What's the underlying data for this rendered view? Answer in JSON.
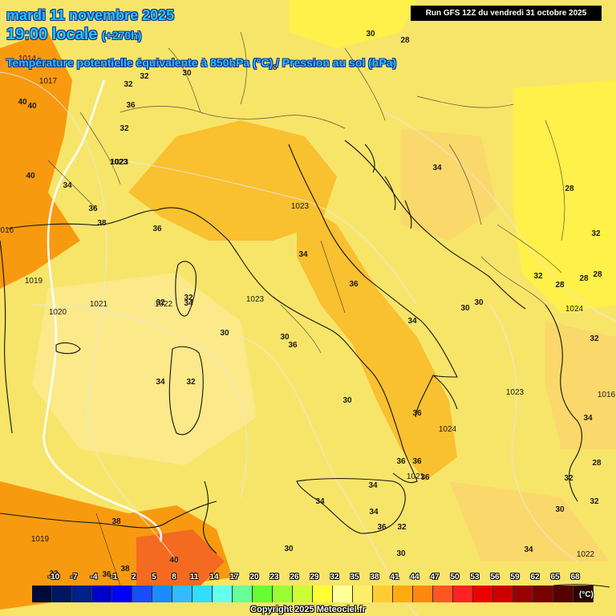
{
  "header": {
    "date_line": "mardi 11 novembre 2025",
    "time_line": "19:00 locale",
    "offset": "(+270h)",
    "parameter": "Température potentielle équivalente à 850hPa (°C) / Pression au sol (hPa)"
  },
  "run_info": "Run GFS 12Z du vendredi 31 octobre 2025",
  "colors": {
    "background_fill": "#f7e56a",
    "band_28_30": "#fff04a",
    "band_32_34": "#fbd86b",
    "band_34_38": "#f9c030",
    "band_38_44": "#f79a10",
    "isobar": "#e8e8e8",
    "pressure_line_1016": "#ffffff",
    "title_text": "#1ec8ff"
  },
  "temperature_labels": [
    "30",
    "28",
    "28",
    "32",
    "32",
    "30",
    "36",
    "32",
    "34",
    "36",
    "40",
    "38",
    "40",
    "40",
    "36",
    "34",
    "1023",
    "32",
    "32",
    "34",
    "36",
    "34",
    "34",
    "30",
    "30",
    "36",
    "32",
    "34",
    "30",
    "36",
    "36",
    "38",
    "40",
    "38",
    "36",
    "34",
    "34",
    "30",
    "32",
    "34",
    "32",
    "30",
    "28",
    "28",
    "28",
    "28",
    "28",
    "32",
    "32",
    "30",
    "30",
    "32",
    "34",
    "32",
    "36",
    "36",
    "36",
    "34",
    "32",
    "30"
  ],
  "pressure_labels": [
    "1017",
    "1014",
    "1023",
    "1019",
    "1021",
    "1020",
    "1022",
    "1023",
    "1023",
    "1024",
    "1024",
    "1023",
    "1021",
    "1019",
    "1022",
    "1016",
    "1016"
  ],
  "legend": {
    "ticks": [
      "-10",
      "-7",
      "-4",
      "-1",
      "2",
      "5",
      "8",
      "11",
      "14",
      "17",
      "20",
      "23",
      "26",
      "29",
      "32",
      "35",
      "38",
      "41",
      "44",
      "47",
      "50",
      "53",
      "56",
      "59",
      "62",
      "65",
      "68"
    ],
    "unit": "(°C)",
    "swatches": [
      "#000a3a",
      "#001660",
      "#00208a",
      "#0000cc",
      "#0000ff",
      "#1a4cff",
      "#1a8cff",
      "#33bbff",
      "#33ddff",
      "#66ffee",
      "#66ff99",
      "#66ff33",
      "#99ff33",
      "#ccff33",
      "#ffff33",
      "#ffff99",
      "#ffee66",
      "#ffcc33",
      "#ffaa11",
      "#ff8811",
      "#ff5522",
      "#ff2222",
      "#ee0000",
      "#cc0000",
      "#990000",
      "#770000",
      "#550000",
      "#330000"
    ]
  },
  "copyright": "Copyright 2025 Meteociel.fr"
}
